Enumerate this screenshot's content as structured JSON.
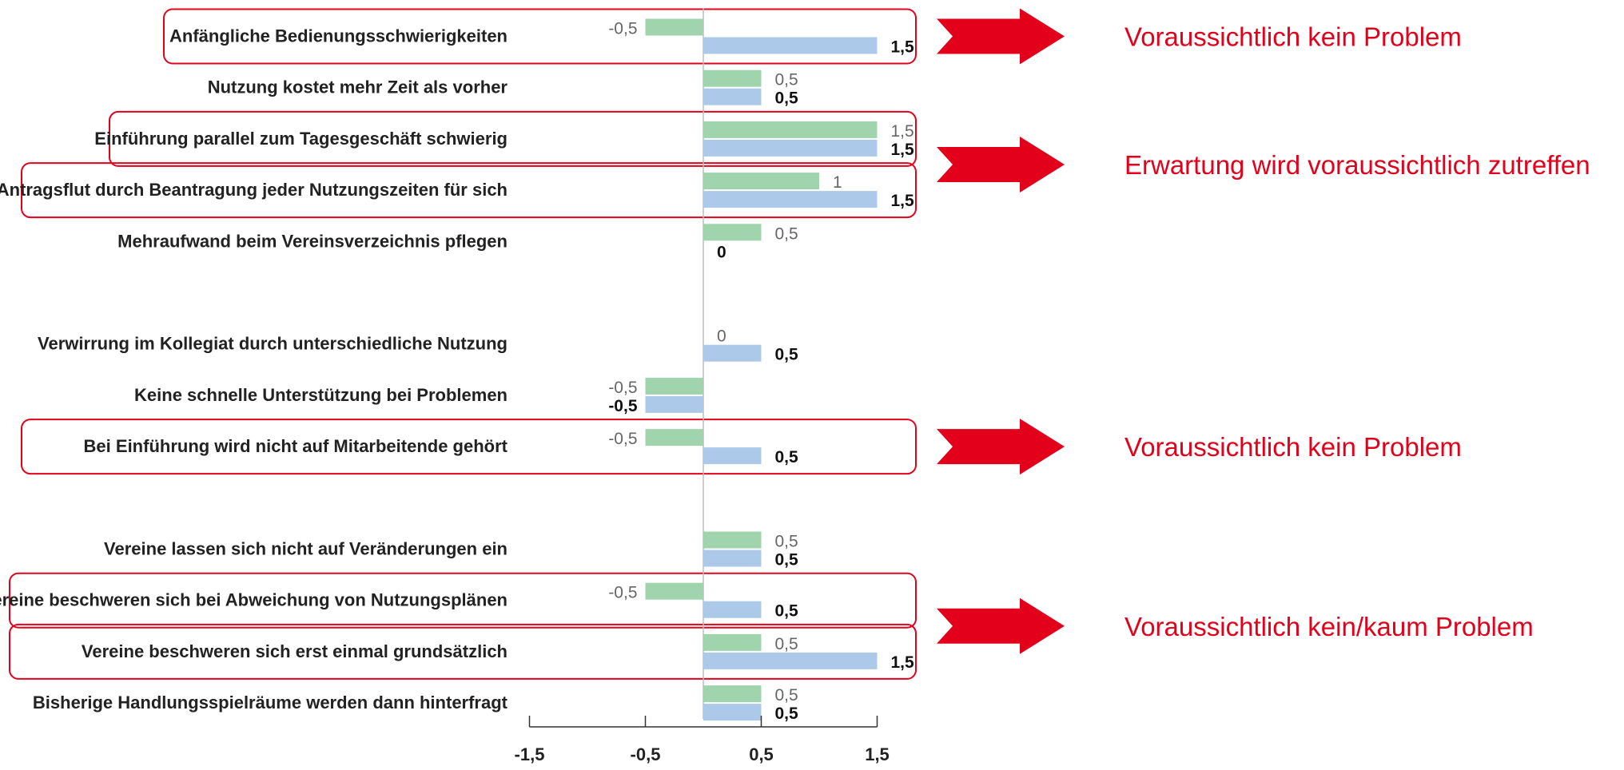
{
  "chart_data": {
    "type": "bar",
    "orientation": "horizontal",
    "categories": [
      "Anfängliche Bedienungsschwierigkeiten",
      "Nutzung kostet mehr Zeit als vorher",
      "Einführung parallel zum Tagesgeschäft schwierig",
      "Antragsflut durch Beantragung jeder Nutzungszeiten für sich",
      "Mehraufwand beim Vereinsverzeichnis pflegen",
      "",
      "Verwirrung im Kollegiat durch unterschiedliche Nutzung",
      "Keine schnelle Unterstützung bei Problemen",
      "Bei Einführung wird nicht auf Mitarbeitende gehört",
      "",
      "Vereine lassen sich nicht auf Veränderungen ein",
      "Vereine beschweren sich bei Abweichung von Nutzungsplänen",
      "Vereine beschweren sich erst einmal grundsätzlich",
      "Bisherige Handlungsspielräume werden dann hinterfragt"
    ],
    "series": [
      {
        "color": "#9fd4ad",
        "label_color": "#666666",
        "values": [
          -0.5,
          0.5,
          1.5,
          1,
          0.5,
          null,
          0,
          -0.5,
          -0.5,
          null,
          0.5,
          -0.5,
          0.5,
          0.5
        ],
        "labels": [
          "-0,5",
          "0,5",
          "1,5",
          "1",
          "0,5",
          "",
          "0",
          "-0,5",
          "-0,5",
          "",
          "0,5",
          "-0,5",
          "0,5",
          "0,5"
        ]
      },
      {
        "color": "#adc9ea",
        "label_color": "#111111",
        "values": [
          1.5,
          0.5,
          1.5,
          1.5,
          0,
          null,
          0.5,
          -0.5,
          0.5,
          null,
          0.5,
          0.5,
          1.5,
          0.5
        ],
        "labels": [
          "1,5",
          "0,5",
          "1,5",
          "1,5",
          "0",
          "",
          "0,5",
          "-0,5",
          "0,5",
          "",
          "0,5",
          "0,5",
          "1,5",
          "0,5"
        ]
      }
    ],
    "xlim": [
      -1.5,
      1.5
    ],
    "xticks": [
      -1.5,
      -0.5,
      0.5,
      1.5
    ],
    "xtick_labels": [
      "-1,5",
      "-0,5",
      "0,5",
      "1,5"
    ],
    "grid": false,
    "highlight_color": "#e3001b",
    "annotations": [
      {
        "text": "Voraussichtlich kein Problem",
        "rows": [
          0
        ]
      },
      {
        "text": "Erwartung wird voraussichtlich zutreffen",
        "rows": [
          2,
          3
        ]
      },
      {
        "text": "Voraussichtlich kein Problem",
        "rows": [
          8
        ]
      },
      {
        "text": "Voraussichtlich kein/kaum Problem",
        "rows": [
          11,
          12
        ]
      }
    ]
  }
}
